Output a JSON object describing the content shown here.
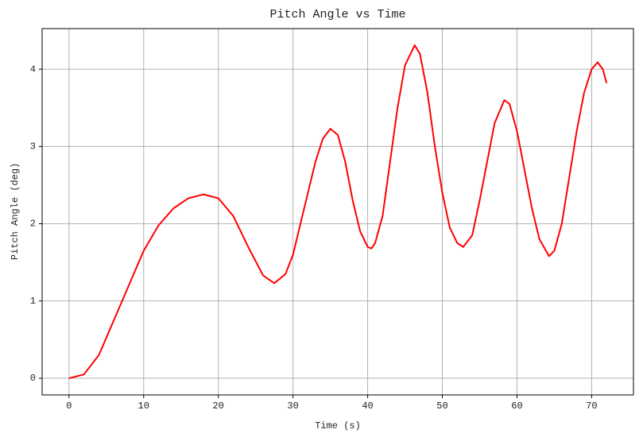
{
  "chart_data": {
    "type": "line",
    "title": "Pitch Angle vs Time",
    "x_label": "Time (s)",
    "y_label": "Pitch Angle (deg)",
    "x": [
      0,
      2,
      4,
      6,
      8,
      10,
      12,
      14,
      16,
      18,
      20,
      22,
      24,
      26,
      27.5,
      29,
      30,
      32,
      33,
      34,
      35,
      36,
      37,
      38,
      39,
      40,
      40.5,
      41,
      42,
      43,
      44,
      45,
      46.3,
      47,
      48,
      49,
      50,
      51,
      52,
      52.8,
      54,
      55,
      56,
      57,
      58.3,
      59,
      60,
      61,
      62,
      63,
      64.3,
      65,
      66,
      67,
      68,
      69,
      70,
      70.8,
      71.5,
      72
    ],
    "series": [
      {
        "name": "Pitch Angle",
        "color": "#ff0000",
        "values": [
          0,
          0.05,
          0.3,
          0.75,
          1.2,
          1.65,
          1.98,
          2.2,
          2.33,
          2.38,
          2.33,
          2.1,
          1.7,
          1.33,
          1.23,
          1.35,
          1.6,
          2.4,
          2.8,
          3.1,
          3.23,
          3.15,
          2.8,
          2.3,
          1.9,
          1.7,
          1.68,
          1.75,
          2.1,
          2.8,
          3.5,
          4.05,
          4.31,
          4.2,
          3.7,
          3.0,
          2.4,
          1.95,
          1.75,
          1.7,
          1.85,
          2.3,
          2.8,
          3.3,
          3.6,
          3.55,
          3.2,
          2.7,
          2.2,
          1.8,
          1.58,
          1.65,
          2.0,
          2.6,
          3.2,
          3.7,
          4.0,
          4.09,
          4.0,
          3.82
        ]
      }
    ],
    "xlim": [
      -3.6,
      75.6
    ],
    "ylim": [
      -0.2155,
      4.5255
    ],
    "xticks": [
      0,
      10,
      20,
      30,
      40,
      50,
      60,
      70
    ],
    "yticks": [
      0,
      1,
      2,
      3,
      4
    ],
    "grid": true
  }
}
